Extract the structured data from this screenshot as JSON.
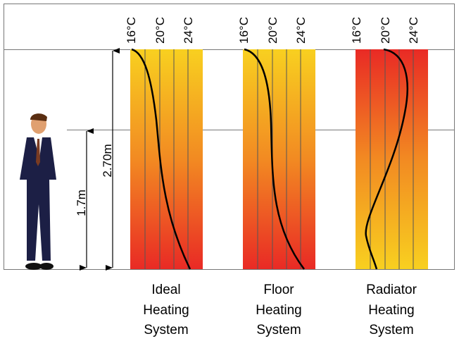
{
  "dimensions": {
    "total_height": "2.70m",
    "person_height": "1.7m"
  },
  "panels": [
    {
      "tick_labels": [
        "16°C",
        "20°C",
        "24°C"
      ],
      "caption": [
        "Ideal",
        "Heating",
        "System"
      ]
    },
    {
      "tick_labels": [
        "16°C",
        "20°C",
        "24°C"
      ],
      "caption": [
        "Floor",
        "Heating",
        "System"
      ]
    },
    {
      "tick_labels": [
        "16°C",
        "20°C",
        "24°C"
      ],
      "caption": [
        "Radiator",
        "Heating",
        "System"
      ]
    }
  ]
}
